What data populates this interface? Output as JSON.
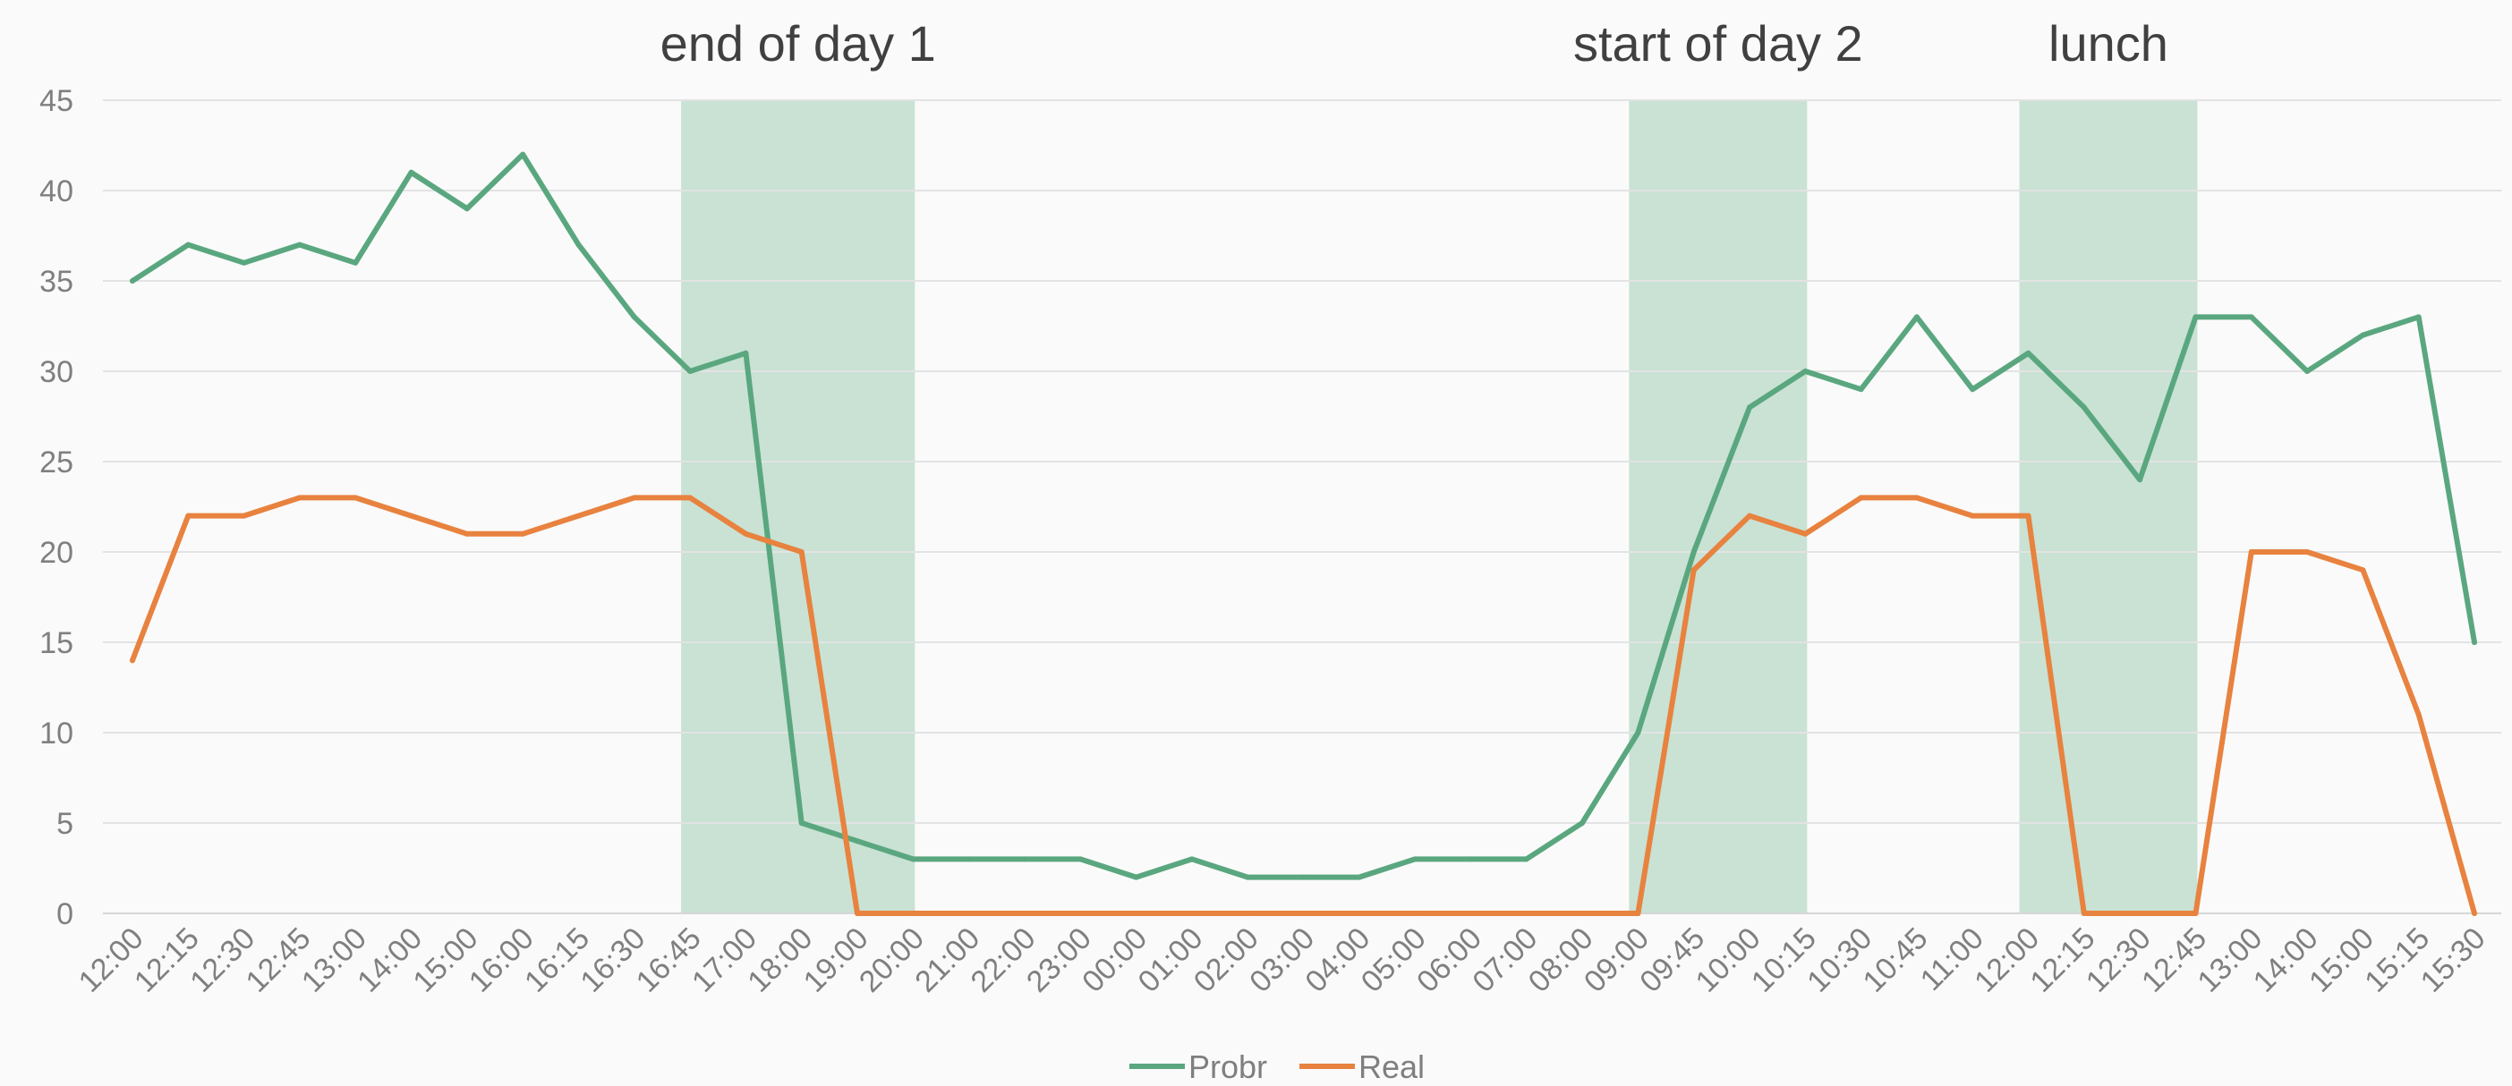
{
  "chart_data": {
    "type": "line",
    "title": "",
    "xlabel": "",
    "ylabel": "",
    "ylim": [
      0,
      45
    ],
    "yticks": [
      0,
      5,
      10,
      15,
      20,
      25,
      30,
      35,
      40,
      45
    ],
    "grid": true,
    "legend_position": "bottom",
    "categories": [
      "12:00",
      "12:15",
      "12:30",
      "12:45",
      "13:00",
      "14:00",
      "15:00",
      "16:00",
      "16:15",
      "16:30",
      "16:45",
      "17:00",
      "18:00",
      "19:00",
      "20:00",
      "21:00",
      "22:00",
      "23:00",
      "00:00",
      "01:00",
      "02:00",
      "03:00",
      "04:00",
      "05:00",
      "06:00",
      "07:00",
      "08:00",
      "09:00",
      "09:45",
      "10:00",
      "10:15",
      "10:30",
      "10:45",
      "11:00",
      "12:00",
      "12:15",
      "12:30",
      "12:45",
      "13:00",
      "14:00",
      "15:00",
      "15:15",
      "15:30"
    ],
    "series": [
      {
        "name": "Probr",
        "color": "#5aa77f",
        "values": [
          35,
          37,
          36,
          37,
          36,
          41,
          39,
          42,
          37,
          33,
          30,
          31,
          5,
          4,
          3,
          3,
          3,
          3,
          2,
          3,
          2,
          2,
          2,
          3,
          3,
          3,
          5,
          10,
          20,
          28,
          30,
          29,
          33,
          29,
          31,
          28,
          24,
          33,
          33,
          30,
          32,
          33,
          15
        ],
        "offset": 0
      },
      {
        "name": "Real",
        "color": "#e8823f",
        "values": [
          14,
          22,
          22,
          23,
          23,
          22,
          21,
          21,
          22,
          23,
          23,
          21,
          20,
          0,
          0,
          0,
          0,
          0,
          0,
          0,
          0,
          0,
          0,
          0,
          0,
          0,
          0,
          0,
          19,
          22,
          21,
          23,
          23,
          22,
          22,
          0,
          0,
          0,
          20,
          20,
          19,
          11,
          0
        ],
        "offset": 0
      }
    ],
    "bands": [
      {
        "label": "end of day 1",
        "from_index": 10,
        "to_index": 14,
        "color": "#c9e2d4"
      },
      {
        "label": "start of day 2",
        "from_index": 27,
        "to_index": 30,
        "color": "#c9e2d4"
      },
      {
        "label": "lunch",
        "from_index": 34,
        "to_index": 37,
        "color": "#c9e2d4"
      }
    ],
    "gridline_color": "#e3e3e3",
    "axis_color": "#d6d6d6"
  }
}
